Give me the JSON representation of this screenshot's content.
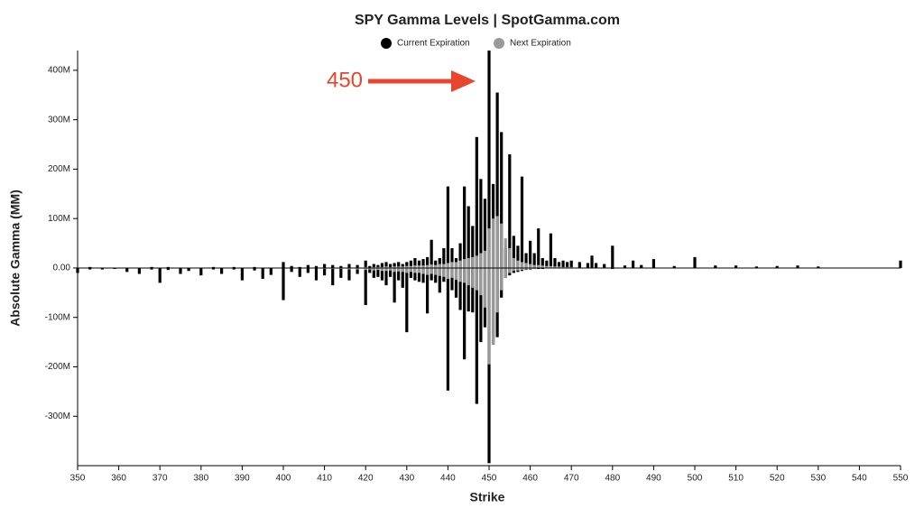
{
  "chart_data": {
    "type": "bar",
    "title": "SPY Gamma Levels | SpotGamma.com",
    "x_label": "Strike",
    "y_label": "Absolute Gamma (MM)",
    "annotation": "450",
    "annotation_color": "#e8452c",
    "x": [
      350,
      353,
      356,
      359,
      362,
      365,
      368,
      370,
      372,
      375,
      377,
      380,
      383,
      385,
      388,
      390,
      393,
      395,
      397,
      400,
      402,
      404,
      406,
      408,
      410,
      412,
      414,
      416,
      418,
      420,
      421,
      422,
      423,
      424,
      425,
      426,
      427,
      428,
      429,
      430,
      431,
      432,
      433,
      434,
      435,
      436,
      437,
      438,
      439,
      440,
      441,
      442,
      443,
      444,
      445,
      446,
      447,
      448,
      449,
      450,
      451,
      452,
      453,
      454,
      455,
      456,
      457,
      458,
      459,
      460,
      461,
      462,
      463,
      464,
      465,
      466,
      467,
      468,
      469,
      470,
      472,
      474,
      475,
      476,
      478,
      480,
      483,
      485,
      487,
      490,
      495,
      500,
      505,
      510,
      515,
      520,
      525,
      530,
      550
    ],
    "series": [
      {
        "name": "Current Expiration",
        "color": "#000000",
        "values": [
          0,
          2,
          0,
          0,
          0,
          0,
          2,
          0,
          2,
          0,
          0,
          0,
          2,
          0,
          2,
          0,
          2,
          0,
          0,
          12,
          4,
          2,
          6,
          4,
          8,
          6,
          4,
          8,
          6,
          15,
          4,
          8,
          6,
          10,
          12,
          8,
          10,
          12,
          8,
          12,
          15,
          20,
          15,
          18,
          22,
          57,
          15,
          20,
          40,
          165,
          40,
          20,
          50,
          165,
          125,
          85,
          265,
          180,
          140,
          440,
          170,
          355,
          275,
          40,
          230,
          65,
          45,
          185,
          30,
          55,
          30,
          80,
          20,
          15,
          70,
          20,
          12,
          15,
          12,
          15,
          12,
          10,
          25,
          10,
          8,
          45,
          5,
          15,
          6,
          18,
          4,
          22,
          5,
          5,
          3,
          4,
          5,
          3,
          15
        ],
        "negative_values": [
          -10,
          -3,
          -3,
          -2,
          -8,
          -12,
          -3,
          -30,
          -4,
          -12,
          -6,
          -15,
          -3,
          -12,
          -3,
          -25,
          -5,
          -22,
          -14,
          -65,
          -8,
          -18,
          -10,
          -25,
          -15,
          -35,
          -20,
          -25,
          -12,
          -75,
          -10,
          -20,
          -18,
          -25,
          -35,
          -18,
          -70,
          -25,
          -40,
          -130,
          -20,
          -25,
          -28,
          -30,
          -92,
          -25,
          -30,
          -50,
          -28,
          -248,
          -45,
          -60,
          -85,
          -185,
          -88,
          -90,
          -275,
          -150,
          -120,
          -395,
          -155,
          -140,
          -60,
          -20,
          -15,
          -10,
          -8,
          -6,
          -4,
          -3,
          -2,
          -2,
          -2,
          -1,
          -1,
          0,
          -1,
          0,
          0,
          0,
          0,
          0,
          0,
          0,
          0,
          -2,
          0,
          0,
          0,
          0,
          0,
          0,
          0,
          0,
          0,
          0,
          0,
          0,
          0
        ]
      },
      {
        "name": "Next Expiration",
        "color": "#999999",
        "values": [
          0,
          0,
          0,
          0,
          0,
          0,
          0,
          0,
          0,
          0,
          0,
          0,
          0,
          0,
          0,
          0,
          0,
          0,
          0,
          0,
          0,
          0,
          0,
          0,
          0,
          0,
          0,
          1,
          1,
          2,
          1,
          2,
          2,
          2,
          3,
          2,
          3,
          3,
          3,
          4,
          4,
          5,
          5,
          5,
          6,
          7,
          6,
          8,
          8,
          10,
          12,
          12,
          15,
          18,
          20,
          22,
          25,
          30,
          35,
          80,
          100,
          105,
          90,
          60,
          40,
          20,
          15,
          12,
          10,
          8,
          6,
          6,
          5,
          4,
          4,
          3,
          3,
          2,
          2,
          2,
          1,
          1,
          1,
          1,
          1,
          1,
          0,
          0,
          0,
          0,
          0,
          0,
          0,
          0,
          0,
          0,
          0,
          0,
          0
        ],
        "negative_values": [
          0,
          0,
          0,
          0,
          0,
          0,
          0,
          0,
          0,
          0,
          0,
          0,
          0,
          0,
          0,
          0,
          0,
          0,
          0,
          0,
          0,
          0,
          0,
          0,
          -2,
          -2,
          -2,
          -3,
          -3,
          -4,
          -3,
          -5,
          -4,
          -6,
          -6,
          -5,
          -8,
          -7,
          -8,
          -10,
          -8,
          -10,
          -10,
          -12,
          -14,
          -12,
          -14,
          -16,
          -18,
          -22,
          -20,
          -24,
          -28,
          -30,
          -35,
          -40,
          -45,
          -55,
          -80,
          -195,
          -155,
          -90,
          -45,
          -20,
          -10,
          -6,
          -5,
          -4,
          -3,
          -2,
          -2,
          -1,
          -1,
          -1,
          -1,
          0,
          0,
          0,
          0,
          0,
          0,
          0,
          0,
          0,
          0,
          0,
          0,
          0,
          0,
          0,
          0,
          0,
          0,
          0,
          0,
          0,
          0,
          0,
          0
        ]
      }
    ],
    "xlim": [
      350,
      550
    ],
    "xticks": [
      350,
      360,
      370,
      380,
      390,
      400,
      410,
      420,
      430,
      440,
      450,
      460,
      470,
      480,
      490,
      500,
      510,
      520,
      530,
      540,
      550
    ],
    "ylim": [
      -400,
      440
    ],
    "yticks": [
      {
        "value": -300,
        "label": "-300M"
      },
      {
        "value": -200,
        "label": "-200M"
      },
      {
        "value": -100,
        "label": "-100M"
      },
      {
        "value": 0,
        "label": "0.00"
      },
      {
        "value": 100,
        "label": "100M"
      },
      {
        "value": 200,
        "label": "200M"
      },
      {
        "value": 300,
        "label": "300M"
      },
      {
        "value": 400,
        "label": "400M"
      }
    ],
    "grid": false,
    "legend": "top"
  }
}
